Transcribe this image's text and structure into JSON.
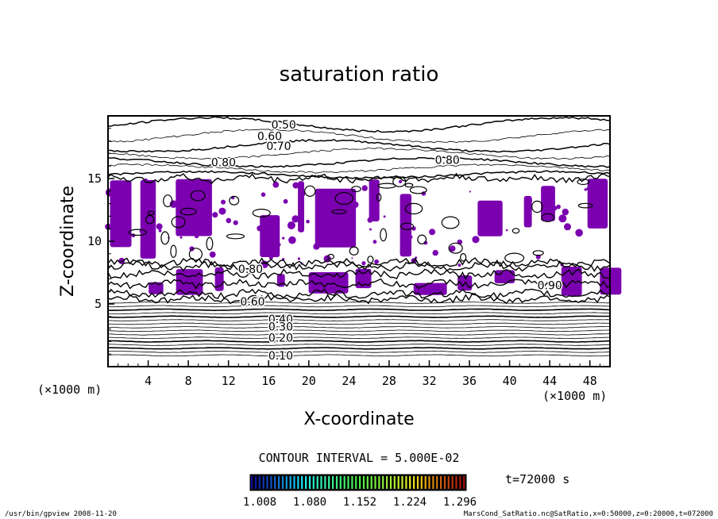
{
  "chart_data": {
    "type": "contour",
    "title": "saturation ratio",
    "xlabel": "X-coordinate",
    "ylabel": "Z-coordinate",
    "x_unit": "(×1000 m)",
    "y_unit": "(×1000 m)",
    "xlim": [
      0,
      50
    ],
    "ylim": [
      0,
      20
    ],
    "x_ticks": [
      "4",
      "8",
      "12",
      "16",
      "20",
      "24",
      "28",
      "32",
      "36",
      "40",
      "44",
      "48"
    ],
    "y_ticks": [
      "5",
      "10",
      "15"
    ],
    "contour_interval_text": "CONTOUR INTERVAL = 5.000E-02",
    "contour_labels": [
      {
        "text": "0.50",
        "x": 17.5,
        "z": 19.3
      },
      {
        "text": "0.60",
        "x": 16.1,
        "z": 18.4
      },
      {
        "text": "0.70",
        "x": 17.0,
        "z": 17.6
      },
      {
        "text": "0.80",
        "x": 11.5,
        "z": 16.3
      },
      {
        "text": "0.80",
        "x": 33.8,
        "z": 16.5
      },
      {
        "text": "0.80",
        "x": 14.2,
        "z": 7.8
      },
      {
        "text": "0.60",
        "x": 14.4,
        "z": 5.2
      },
      {
        "text": "0.40",
        "x": 17.2,
        "z": 3.8
      },
      {
        "text": "0.30",
        "x": 17.2,
        "z": 3.2
      },
      {
        "text": "0.20",
        "x": 17.2,
        "z": 2.3
      },
      {
        "text": "0.10",
        "x": 17.2,
        "z": 0.9
      },
      {
        "text": "0.90",
        "x": 44.0,
        "z": 6.5
      }
    ],
    "supersaturated_fill_color": "#7b00b0",
    "supersaturated_regions_z_ranges": [
      [
        5.6,
        8.0
      ],
      [
        8.6,
        15.0
      ]
    ],
    "colorbar": {
      "tick_labels": [
        "1.008",
        "1.080",
        "1.152",
        "1.224",
        "1.296"
      ],
      "min": 1.008,
      "max": 1.296,
      "colormap": "rainbow on black"
    },
    "time_label": "t=72000 s",
    "footer_left": "/usr/bin/gpview   2008-11-20",
    "footer_right": "MarsCond_SatRatio.nc@SatRatio,x=0:50000,z=0:20000,t=072000"
  }
}
